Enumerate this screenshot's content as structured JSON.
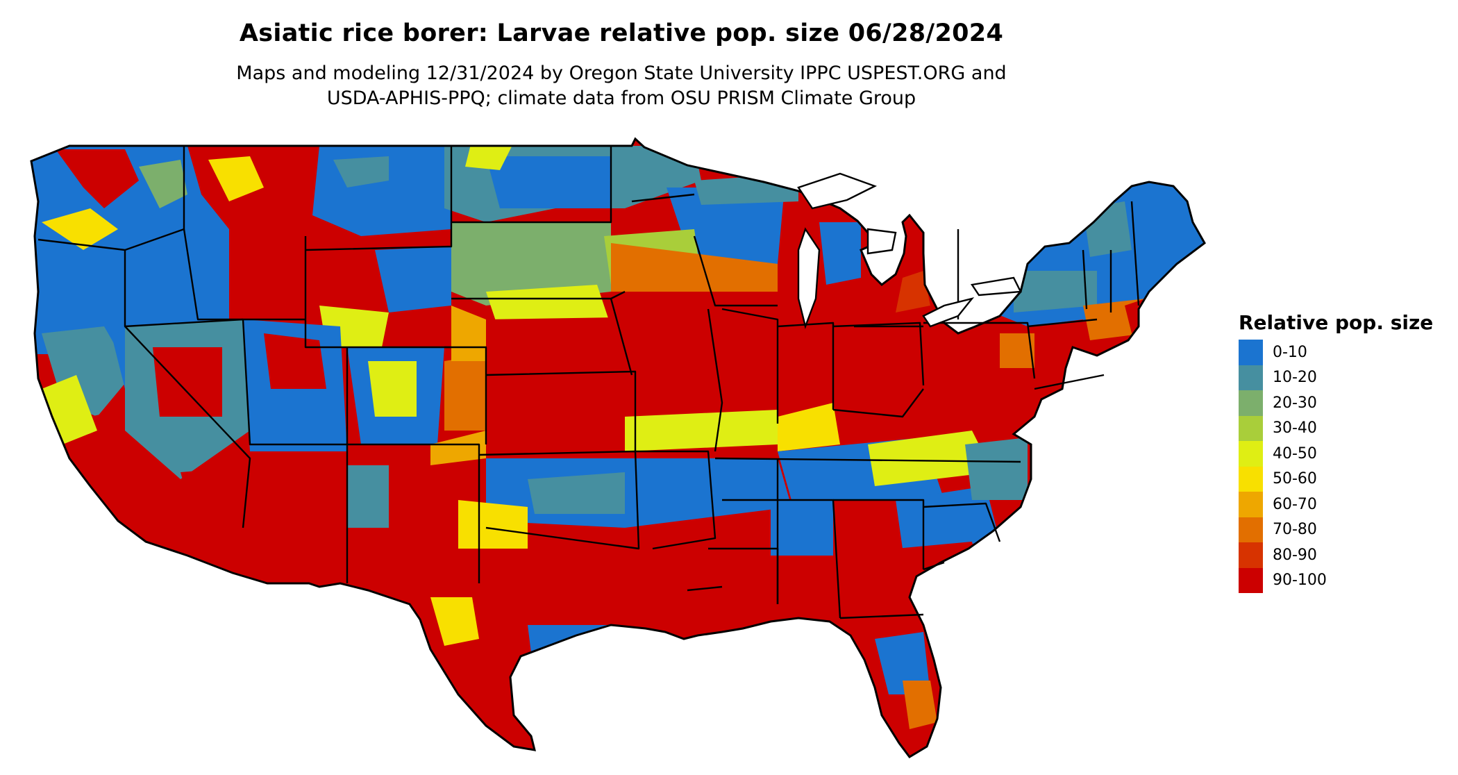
{
  "title": "Asiatic rice borer: Larvae relative pop. size 06/28/2024",
  "subtitle_line1": "Maps and modeling 12/31/2024 by Oregon State University IPPC USPEST.ORG and",
  "subtitle_line2": "USDA-APHIS-PPQ; climate data from OSU PRISM Climate Group",
  "legend": {
    "title": "Relative pop. size",
    "items": [
      {
        "label": "0-10",
        "color": "#1b74d0"
      },
      {
        "label": "10-20",
        "color": "#468fa0"
      },
      {
        "label": "20-30",
        "color": "#7caf6c"
      },
      {
        "label": "30-40",
        "color": "#a9ce3a"
      },
      {
        "label": "40-50",
        "color": "#dfee14"
      },
      {
        "label": "50-60",
        "color": "#f8e000"
      },
      {
        "label": "60-70",
        "color": "#eea700"
      },
      {
        "label": "70-80",
        "color": "#e26f00"
      },
      {
        "label": "80-90",
        "color": "#d73300"
      },
      {
        "label": "90-100",
        "color": "#cc0000"
      }
    ]
  }
}
